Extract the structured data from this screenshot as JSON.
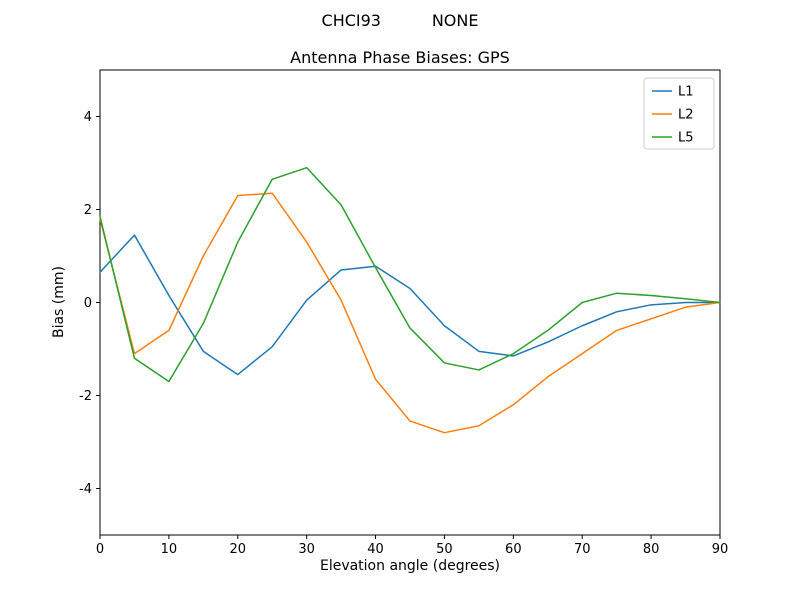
{
  "chart_data": {
    "type": "line",
    "suptitle": "CHCI93          NONE",
    "title": "Antenna Phase Biases: GPS",
    "xlabel": "Elevation angle (degrees)",
    "ylabel": "Bias (mm)",
    "xlim": [
      0,
      90
    ],
    "ylim": [
      -5,
      5
    ],
    "xticks": [
      0,
      10,
      20,
      30,
      40,
      50,
      60,
      70,
      80,
      90
    ],
    "yticks": [
      -4,
      -2,
      0,
      2,
      4
    ],
    "grid": false,
    "legend_position": "upper right",
    "x": [
      0,
      5,
      10,
      15,
      20,
      25,
      30,
      35,
      40,
      45,
      50,
      55,
      60,
      65,
      70,
      75,
      80,
      85,
      90
    ],
    "series": [
      {
        "name": "L1",
        "color": "#1f77b4",
        "values": [
          0.65,
          1.45,
          0.15,
          -1.05,
          -1.55,
          -0.95,
          0.05,
          0.7,
          0.78,
          0.3,
          -0.5,
          -1.05,
          -1.15,
          -0.85,
          -0.5,
          -0.2,
          -0.05,
          0.0,
          0.0
        ]
      },
      {
        "name": "L2",
        "color": "#ff7f0e",
        "values": [
          1.8,
          -1.1,
          -0.6,
          1.0,
          2.3,
          2.35,
          1.3,
          0.05,
          -1.65,
          -2.55,
          -2.8,
          -2.65,
          -2.2,
          -1.6,
          -1.1,
          -0.6,
          -0.35,
          -0.1,
          0.0
        ]
      },
      {
        "name": "L5",
        "color": "#2ca02c",
        "values": [
          1.85,
          -1.2,
          -1.7,
          -0.45,
          1.3,
          2.65,
          2.9,
          2.1,
          0.75,
          -0.55,
          -1.3,
          -1.45,
          -1.1,
          -0.6,
          0.0,
          0.2,
          0.15,
          0.08,
          0.0
        ]
      }
    ]
  }
}
